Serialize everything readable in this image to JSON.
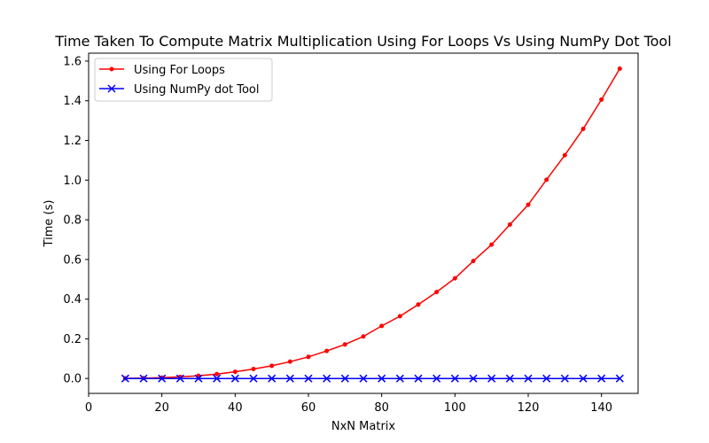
{
  "chart_data": {
    "type": "line",
    "title": "Time Taken To Compute Matrix Multiplication Using For Loops Vs Using NumPy Dot Tool",
    "xlabel": "NxN Matrix",
    "ylabel": "Time (s)",
    "xlim": [
      0,
      150
    ],
    "ylim": [
      -0.075,
      1.64
    ],
    "xticks": [
      0,
      20,
      40,
      60,
      80,
      100,
      120,
      140
    ],
    "yticks": [
      0.0,
      0.2,
      0.4,
      0.6,
      0.8,
      1.0,
      1.2,
      1.4,
      1.6
    ],
    "grid": false,
    "legend_position": "top-left",
    "x": [
      10,
      15,
      20,
      25,
      30,
      35,
      40,
      45,
      50,
      55,
      60,
      65,
      70,
      75,
      80,
      85,
      90,
      95,
      100,
      105,
      110,
      115,
      120,
      125,
      130,
      135,
      140,
      145
    ],
    "series": [
      {
        "name": "Using For Loops",
        "color": "#ff0000",
        "marker": "dot",
        "values": [
          0.001,
          0.002,
          0.004,
          0.008,
          0.014,
          0.022,
          0.034,
          0.048,
          0.064,
          0.085,
          0.109,
          0.139,
          0.172,
          0.212,
          0.265,
          0.314,
          0.373,
          0.436,
          0.505,
          0.592,
          0.675,
          0.776,
          0.876,
          1.002,
          1.126,
          1.258,
          1.406,
          1.562
        ]
      },
      {
        "name": "Using NumPy dot Tool",
        "color": "#0000ff",
        "marker": "x",
        "values": [
          0.0,
          0.0,
          0.0,
          0.0,
          0.0,
          0.0,
          0.0,
          0.0,
          0.0,
          0.0,
          0.0,
          0.0,
          0.0,
          0.0,
          0.0,
          0.0,
          0.0,
          0.0,
          0.0,
          0.0,
          0.0,
          0.0,
          0.0,
          0.0,
          0.0,
          0.0,
          0.0,
          0.0
        ]
      }
    ]
  }
}
